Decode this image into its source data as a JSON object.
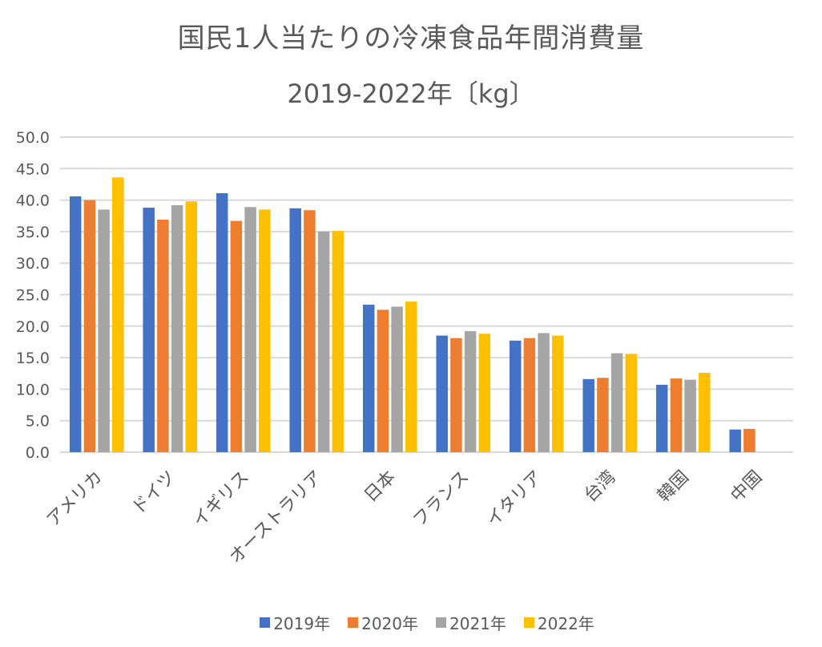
{
  "chart_data": {
    "type": "bar",
    "title": "国民1人当たりの冷凍食品年間消費量",
    "subtitle": "2019‑2022年〔kg〕",
    "xlabel": "",
    "ylabel": "",
    "ylim": [
      0,
      50
    ],
    "yticks": [
      "0.0",
      "5.0",
      "10.0",
      "15.0",
      "20.0",
      "25.0",
      "30.0",
      "35.0",
      "40.0",
      "45.0",
      "50.0"
    ],
    "ytick_values": [
      0,
      5,
      10,
      15,
      20,
      25,
      30,
      35,
      40,
      45,
      50
    ],
    "grid": true,
    "legend_position": "bottom",
    "categories": [
      "アメリカ",
      "ドイツ",
      "イギリス",
      "オーストラリア",
      "日本",
      "フランス",
      "イタリア",
      "台湾",
      "韓国",
      "中国"
    ],
    "series": [
      {
        "name": "2019年",
        "color": "#4472C4",
        "values": [
          40.6,
          38.8,
          41.1,
          38.7,
          23.4,
          18.5,
          17.7,
          11.6,
          10.7,
          3.6
        ]
      },
      {
        "name": "2020年",
        "color": "#ED7D31",
        "values": [
          40.0,
          36.9,
          36.7,
          38.4,
          22.6,
          18.1,
          18.1,
          11.8,
          11.7,
          3.7
        ]
      },
      {
        "name": "2021年",
        "color": "#A5A5A5",
        "values": [
          38.5,
          39.2,
          38.9,
          35.0,
          23.1,
          19.2,
          18.9,
          15.7,
          11.5,
          null
        ]
      },
      {
        "name": "2022年",
        "color": "#FFC000",
        "values": [
          43.6,
          39.8,
          38.5,
          35.1,
          23.9,
          18.8,
          18.5,
          15.6,
          12.6,
          null
        ]
      }
    ]
  }
}
